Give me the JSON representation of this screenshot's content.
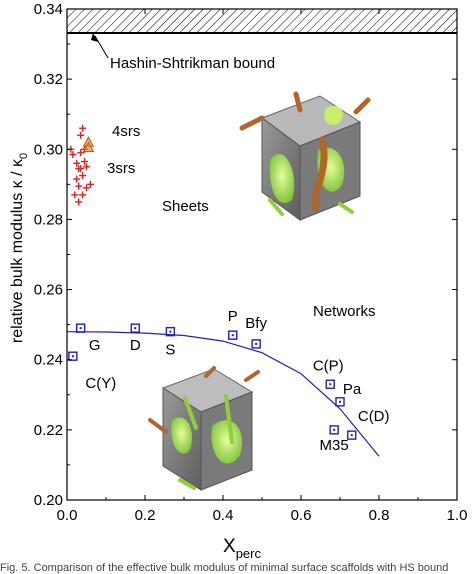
{
  "chart_data": {
    "type": "scatter",
    "xlabel": "X",
    "xlabel_sub": "perc",
    "ylabel": "relative bulk modulus κ / κ",
    "ylabel_sub": "0",
    "xlim": [
      0.0,
      1.0
    ],
    "ylim": [
      0.2,
      0.34
    ],
    "xticks": [
      "0.0",
      "0.2",
      "0.4",
      "0.6",
      "0.8",
      "1.0"
    ],
    "yticks": [
      "0.20",
      "0.22",
      "0.24",
      "0.26",
      "0.28",
      "0.30",
      "0.32",
      "0.34"
    ],
    "hs_bound": {
      "label": "Hashin-Shtrikman bound",
      "y": 0.3335
    },
    "group_labels": {
      "sheets": "Sheets",
      "networks": "Networks",
      "srs3": "3srs",
      "srs4": "4srs"
    },
    "sheet_points": [
      {
        "x": 0.01,
        "y": 0.3
      },
      {
        "x": 0.015,
        "y": 0.2985
      },
      {
        "x": 0.025,
        "y": 0.296
      },
      {
        "x": 0.03,
        "y": 0.2945
      },
      {
        "x": 0.04,
        "y": 0.2925
      },
      {
        "x": 0.035,
        "y": 0.2945
      },
      {
        "x": 0.045,
        "y": 0.2965
      },
      {
        "x": 0.05,
        "y": 0.295
      },
      {
        "x": 0.025,
        "y": 0.2915
      },
      {
        "x": 0.02,
        "y": 0.287
      },
      {
        "x": 0.03,
        "y": 0.285
      },
      {
        "x": 0.04,
        "y": 0.287
      },
      {
        "x": 0.03,
        "y": 0.2895
      },
      {
        "x": 0.05,
        "y": 0.289
      },
      {
        "x": 0.06,
        "y": 0.29
      },
      {
        "x": 0.035,
        "y": 0.304
      },
      {
        "x": 0.04,
        "y": 0.306
      },
      {
        "x": 0.035,
        "y": 0.299
      },
      {
        "x": 0.045,
        "y": 0.3
      }
    ],
    "srs_points": [
      {
        "x": 0.055,
        "y": 0.302
      },
      {
        "x": 0.055,
        "y": 0.3005
      }
    ],
    "network_points": [
      {
        "label": "G",
        "x": 0.035,
        "y": 0.249
      },
      {
        "label": "C(Y)",
        "x": 0.015,
        "y": 0.241
      },
      {
        "label": "D",
        "x": 0.175,
        "y": 0.249
      },
      {
        "label": "S",
        "x": 0.265,
        "y": 0.248
      },
      {
        "label": "P",
        "x": 0.425,
        "y": 0.247
      },
      {
        "label": "Bfy",
        "x": 0.485,
        "y": 0.2445
      },
      {
        "label": "C(P)",
        "x": 0.675,
        "y": 0.233
      },
      {
        "label": "Pa",
        "x": 0.7,
        "y": 0.228
      },
      {
        "label": "M35",
        "x": 0.685,
        "y": 0.22
      },
      {
        "label": "C(D)",
        "x": 0.73,
        "y": 0.2185
      }
    ],
    "fit_curve": {
      "x": [
        0.0,
        0.1,
        0.2,
        0.3,
        0.4,
        0.5,
        0.6,
        0.7,
        0.8
      ],
      "y": [
        0.248,
        0.2479,
        0.2476,
        0.2469,
        0.2453,
        0.242,
        0.236,
        0.226,
        0.2125
      ]
    },
    "colors": {
      "network_marker": "#1f1fc8",
      "fit_curve": "#1f1fc8",
      "networks_label": "#1f1fc8",
      "sheet_marker": "#e02020",
      "sheets_label": "#d02020",
      "srs_marker": "#e88a2a"
    }
  },
  "footer_text": "Fig. 5. Comparison of the effective bulk modulus of minimal surface scaffolds with HS bound"
}
